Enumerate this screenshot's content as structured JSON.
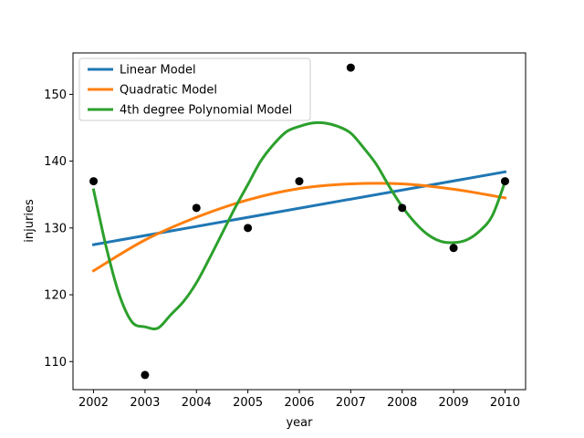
{
  "chart_data": {
    "type": "scatter",
    "title": "",
    "xlabel": "year",
    "ylabel": "injuries",
    "xlim": [
      2001.6,
      2010.4
    ],
    "ylim": [
      105.8,
      156.2
    ],
    "x_ticks": [
      2002,
      2003,
      2004,
      2005,
      2006,
      2007,
      2008,
      2009,
      2010
    ],
    "y_ticks": [
      110,
      120,
      130,
      140,
      150
    ],
    "grid": false,
    "legend_position": "top-left",
    "points": {
      "color": "#000000",
      "x": [
        2002,
        2003,
        2004,
        2005,
        2006,
        2007,
        2008,
        2009,
        2010
      ],
      "y": [
        137,
        108,
        133,
        130,
        137,
        154,
        133,
        127,
        137
      ]
    },
    "series": [
      {
        "name": "Linear Model",
        "color": "#1f77b4",
        "x": [
          2002,
          2010
        ],
        "y": [
          127.5,
          138.4
        ]
      },
      {
        "name": "Quadratic Model",
        "color": "#ff7f0e",
        "x": [
          2002,
          2003,
          2004,
          2005,
          2006,
          2007,
          2008,
          2009,
          2010
        ],
        "y": [
          123.6,
          128.2,
          131.6,
          134.2,
          135.9,
          136.6,
          136.6,
          135.8,
          134.5
        ]
      },
      {
        "name": "4th degree Polynomial Model",
        "color": "#2ca02c",
        "x": [
          2002,
          2002.25,
          2002.5,
          2002.75,
          2003,
          2003.25,
          2003.5,
          2003.75,
          2004,
          2004.25,
          2004.5,
          2004.75,
          2005,
          2005.25,
          2005.5,
          2005.75,
          2006,
          2006.25,
          2006.5,
          2006.75,
          2007,
          2007.25,
          2007.5,
          2007.75,
          2008,
          2008.25,
          2008.5,
          2008.75,
          2009,
          2009.25,
          2009.5,
          2009.75,
          2010
        ],
        "y": [
          135.7,
          127.0,
          120.0,
          115.9,
          115.2,
          115.0,
          117.0,
          119.0,
          121.8,
          125.4,
          129.2,
          133.0,
          136.5,
          140.0,
          142.5,
          144.4,
          145.2,
          145.7,
          145.7,
          145.2,
          144.2,
          142.0,
          139.5,
          136.2,
          133.2,
          130.8,
          129.0,
          128.0,
          127.8,
          128.2,
          129.5,
          131.8,
          136.9
        ]
      }
    ]
  }
}
